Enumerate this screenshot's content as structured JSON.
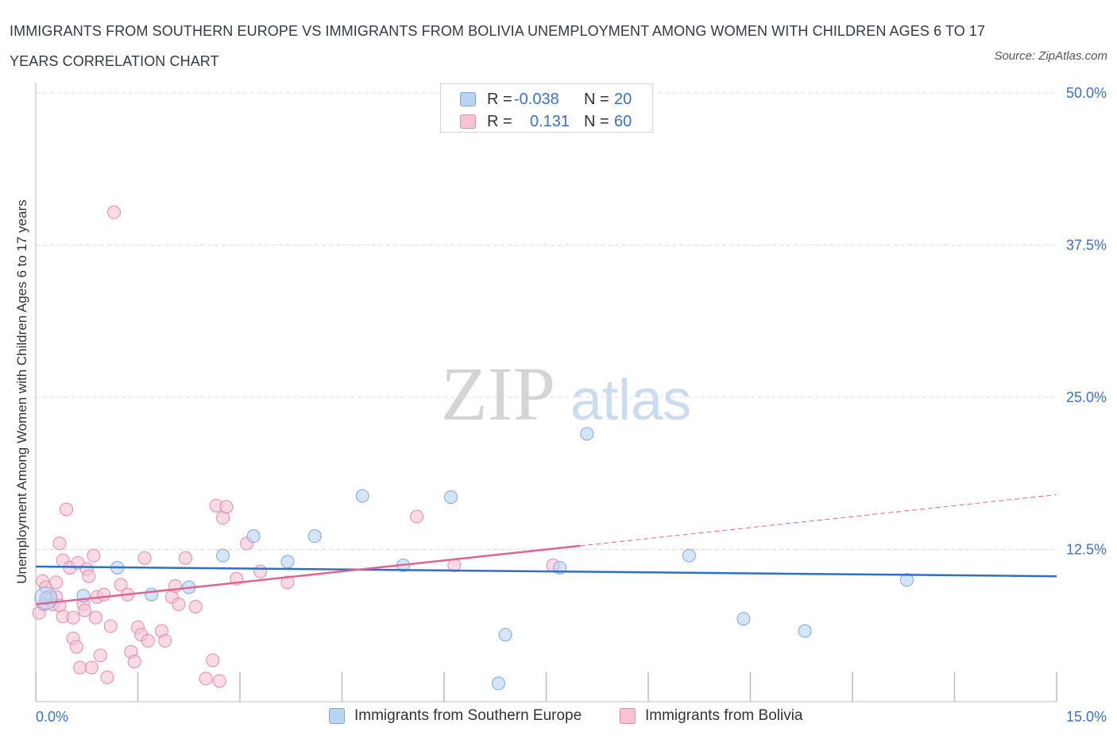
{
  "title": "IMMIGRANTS FROM SOUTHERN EUROPE VS IMMIGRANTS FROM BOLIVIA UNEMPLOYMENT AMONG WOMEN WITH CHILDREN AGES 6 TO 17 YEARS CORRELATION CHART",
  "source": "Source: ZipAtlas.com",
  "watermark": {
    "zip": "ZIP",
    "atlas": "atlas"
  },
  "legend_top": {
    "rows": [
      {
        "r_label": "R =",
        "r_value": "-0.038",
        "n_label": "N =",
        "n_value": "20"
      },
      {
        "r_label": "R =",
        "r_value": "0.131",
        "n_label": "N =",
        "n_value": "60"
      }
    ]
  },
  "colors": {
    "blue_fill": "#b9d3f4",
    "blue_stroke": "#7ea6dd",
    "blue_line": "#2f6fcb",
    "pink_fill": "#f7c3d3",
    "pink_stroke": "#e48aa6",
    "pink_line": "#e0648e",
    "axis_text": "#3b6fcf",
    "grid": "#dddddd"
  },
  "chart_data": {
    "type": "scatter",
    "title": "IMMIGRANTS FROM SOUTHERN EUROPE VS IMMIGRANTS FROM BOLIVIA UNEMPLOYMENT AMONG WOMEN WITH CHILDREN AGES 6 TO 17 YEARS CORRELATION CHART",
    "ylabel": "Unemployment Among Women with Children Ages 6 to 17 years",
    "xlim": [
      0,
      15
    ],
    "ylim": [
      0,
      50
    ],
    "x_tick_labels": [
      {
        "value": 0,
        "label": "0.0%"
      },
      {
        "value": 15,
        "label": "15.0%"
      }
    ],
    "y_tick_labels": [
      {
        "value": 12.5,
        "label": "12.5%"
      },
      {
        "value": 25,
        "label": "25.0%"
      },
      {
        "value": 37.5,
        "label": "37.5%"
      },
      {
        "value": 50,
        "label": "50.0%"
      }
    ],
    "grid": true,
    "series": [
      {
        "name": "Immigrants from Southern Europe",
        "color": "#b9d3f4",
        "points": [
          [
            0.15,
            8.5
          ],
          [
            0.7,
            8.7
          ],
          [
            1.2,
            11.0
          ],
          [
            1.7,
            8.8
          ],
          [
            2.25,
            9.4
          ],
          [
            2.75,
            12.0
          ],
          [
            3.2,
            13.6
          ],
          [
            3.7,
            11.5
          ],
          [
            4.1,
            13.6
          ],
          [
            4.8,
            16.9
          ],
          [
            5.4,
            11.2
          ],
          [
            6.1,
            16.8
          ],
          [
            6.8,
            1.5
          ],
          [
            6.9,
            5.5
          ],
          [
            7.7,
            11.0
          ],
          [
            8.1,
            22.0
          ],
          [
            9.6,
            12.0
          ],
          [
            10.4,
            6.8
          ],
          [
            11.3,
            5.8
          ],
          [
            12.8,
            10.0
          ]
        ],
        "trend": {
          "x": [
            0,
            15
          ],
          "y": [
            11.1,
            10.3
          ]
        }
      },
      {
        "name": "Immigrants from Bolivia",
        "color": "#f7c3d3",
        "points": [
          [
            0.05,
            7.3
          ],
          [
            0.1,
            9.9
          ],
          [
            0.12,
            8.0
          ],
          [
            0.15,
            9.4
          ],
          [
            0.2,
            8.6
          ],
          [
            0.25,
            8.0
          ],
          [
            0.3,
            8.6
          ],
          [
            0.3,
            9.8
          ],
          [
            0.35,
            7.9
          ],
          [
            0.35,
            13.0
          ],
          [
            0.4,
            7.0
          ],
          [
            0.4,
            11.6
          ],
          [
            0.45,
            15.8
          ],
          [
            0.5,
            11.0
          ],
          [
            0.55,
            6.9
          ],
          [
            0.55,
            5.2
          ],
          [
            0.6,
            4.5
          ],
          [
            0.62,
            11.4
          ],
          [
            0.65,
            2.8
          ],
          [
            0.7,
            8.0
          ],
          [
            0.72,
            7.5
          ],
          [
            0.75,
            10.9
          ],
          [
            0.78,
            10.3
          ],
          [
            0.82,
            2.8
          ],
          [
            0.85,
            12.0
          ],
          [
            0.88,
            6.9
          ],
          [
            0.9,
            8.6
          ],
          [
            0.95,
            3.8
          ],
          [
            1.0,
            8.8
          ],
          [
            1.05,
            2.0
          ],
          [
            1.1,
            6.2
          ],
          [
            1.15,
            40.2
          ],
          [
            1.25,
            9.6
          ],
          [
            1.35,
            8.8
          ],
          [
            1.4,
            4.1
          ],
          [
            1.45,
            3.3
          ],
          [
            1.5,
            6.1
          ],
          [
            1.55,
            5.5
          ],
          [
            1.6,
            11.8
          ],
          [
            1.65,
            5.0
          ],
          [
            1.85,
            5.8
          ],
          [
            1.9,
            5.0
          ],
          [
            2.0,
            8.6
          ],
          [
            2.05,
            9.5
          ],
          [
            2.1,
            8.0
          ],
          [
            2.2,
            11.8
          ],
          [
            2.35,
            7.8
          ],
          [
            2.5,
            1.9
          ],
          [
            2.6,
            3.4
          ],
          [
            2.65,
            16.1
          ],
          [
            2.7,
            1.7
          ],
          [
            2.75,
            15.1
          ],
          [
            2.8,
            16.0
          ],
          [
            2.95,
            10.1
          ],
          [
            3.1,
            13.0
          ],
          [
            3.3,
            10.7
          ],
          [
            3.7,
            9.8
          ],
          [
            5.6,
            15.2
          ],
          [
            6.15,
            11.2
          ],
          [
            7.6,
            11.2
          ]
        ],
        "trend": {
          "x": [
            0,
            8
          ],
          "y": [
            8.0,
            12.8
          ]
        },
        "trend_extension": {
          "x": [
            8,
            15
          ],
          "y": [
            12.8,
            17.0
          ]
        }
      }
    ]
  },
  "legend_bottom": [
    {
      "label": "Immigrants from Southern Europe"
    },
    {
      "label": "Immigrants from Bolivia"
    }
  ]
}
